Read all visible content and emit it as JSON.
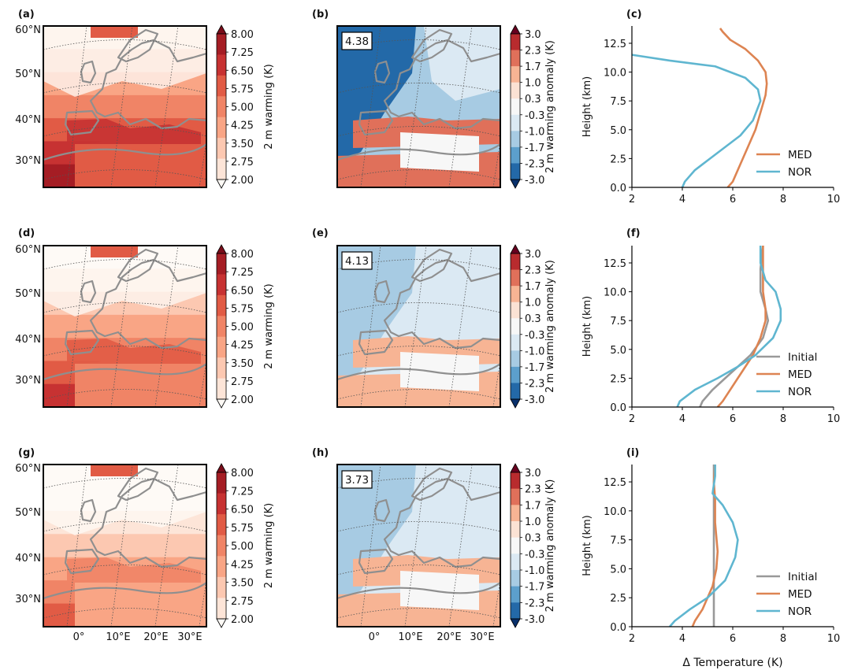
{
  "colors": {
    "warming_levels": [
      "#fefaf6",
      "#fde5d8",
      "#fcc8b1",
      "#f9a585",
      "#f08466",
      "#e15b45",
      "#c73232",
      "#a51d24",
      "#7a0d1a"
    ],
    "anomaly_levels": [
      "#08306b",
      "#2369a8",
      "#5c9fcc",
      "#a7cbe3",
      "#dbe9f3",
      "#f7f7f7",
      "#fbe2d4",
      "#f7b494",
      "#e0705a",
      "#b82b2e",
      "#67001f"
    ],
    "MED": "#dd8452",
    "NOR": "#5fb6d0",
    "Initial": "#999999",
    "coast": "#8f8f8f",
    "ocean_frame": "#000000"
  },
  "map_axes": {
    "lat_labels": [
      "60°N",
      "50°N",
      "40°N",
      "30°N"
    ],
    "lon_labels": [
      "0°",
      "10°E",
      "20°E",
      "30°E"
    ]
  },
  "colorbars": {
    "warming": {
      "label": "2 m warming (K)",
      "ticks": [
        "8.00",
        "7.25",
        "6.50",
        "5.75",
        "5.00",
        "4.25",
        "3.50",
        "2.75",
        "2.00"
      ]
    },
    "anomaly": {
      "label": "2 m warming anomaly (K)",
      "ticks": [
        "3.0",
        "2.3",
        "1.7",
        "1.0",
        "0.3",
        "-0.3",
        "-1.0",
        "-1.7",
        "-2.3",
        "-3.0"
      ]
    }
  },
  "panel_labels": [
    "(a)",
    "(b)",
    "(c)",
    "(d)",
    "(e)",
    "(f)",
    "(g)",
    "(h)",
    "(i)"
  ],
  "anomaly_boxes": [
    "4.38",
    "4.13",
    "3.73"
  ],
  "chart_data": [
    {
      "panel": "(c)",
      "type": "line",
      "xlabel": "",
      "ylabel": "Height (km)",
      "xlim": [
        2,
        10
      ],
      "ylim": [
        0,
        14
      ],
      "xticks": [
        "2",
        "4",
        "6",
        "8",
        "10"
      ],
      "yticks": [
        "0.0",
        "2.5",
        "5.0",
        "7.5",
        "10.0",
        "12.5"
      ],
      "legend": "lower-right",
      "series": [
        {
          "name": "MED",
          "color": "#dd8452",
          "x": [
            5.8,
            6.0,
            6.2,
            6.4,
            6.6,
            6.9,
            7.1,
            7.3,
            7.35,
            7.3,
            7.0,
            6.5,
            5.9,
            5.6,
            5.5
          ],
          "y": [
            0,
            0.5,
            1.5,
            2.5,
            3.5,
            5.0,
            6.5,
            8.0,
            9.0,
            10.0,
            11.0,
            12.0,
            12.8,
            13.5,
            13.8
          ]
        },
        {
          "name": "NOR",
          "color": "#5fb6d0",
          "x": [
            4.0,
            4.1,
            4.5,
            5.1,
            5.7,
            6.3,
            6.8,
            7.1,
            7.0,
            6.5,
            5.3,
            3.5,
            2.0
          ],
          "y": [
            0,
            0.5,
            1.5,
            2.5,
            3.5,
            4.5,
            5.8,
            7.5,
            8.5,
            9.5,
            10.5,
            11.0,
            11.5
          ]
        }
      ]
    },
    {
      "panel": "(f)",
      "type": "line",
      "xlabel": "",
      "ylabel": "Height (km)",
      "xlim": [
        2,
        10
      ],
      "ylim": [
        0,
        14
      ],
      "xticks": [
        "2",
        "4",
        "6",
        "8",
        "10"
      ],
      "yticks": [
        "0.0",
        "2.5",
        "5.0",
        "7.5",
        "10.0",
        "12.5"
      ],
      "legend": "lower-right",
      "series": [
        {
          "name": "Initial",
          "color": "#999999",
          "x": [
            4.7,
            4.8,
            5.2,
            5.7,
            6.2,
            6.7,
            7.2,
            7.4,
            7.3,
            7.1,
            7.1,
            7.2
          ],
          "y": [
            0,
            0.5,
            1.5,
            2.5,
            3.5,
            4.5,
            6.0,
            7.5,
            8.5,
            10.0,
            12.0,
            14.0
          ]
        },
        {
          "name": "MED",
          "color": "#dd8452",
          "x": [
            5.4,
            5.6,
            5.9,
            6.2,
            6.5,
            6.8,
            7.1,
            7.3,
            7.3,
            7.2,
            7.2,
            7.2
          ],
          "y": [
            0,
            0.5,
            1.5,
            2.5,
            3.5,
            4.5,
            6.0,
            7.5,
            8.5,
            10.0,
            12.0,
            14.0
          ]
        },
        {
          "name": "NOR",
          "color": "#5fb6d0",
          "x": [
            3.8,
            3.9,
            4.5,
            5.4,
            6.2,
            6.9,
            7.6,
            7.9,
            7.9,
            7.7,
            7.3,
            7.1,
            7.1
          ],
          "y": [
            0,
            0.5,
            1.5,
            2.5,
            3.5,
            4.5,
            6.0,
            7.5,
            8.5,
            10.0,
            11.0,
            12.5,
            14.0
          ]
        }
      ]
    },
    {
      "panel": "(i)",
      "type": "line",
      "xlabel": "Δ Temperature (K)",
      "ylabel": "Height (km)",
      "xlim": [
        2,
        10
      ],
      "ylim": [
        0,
        14
      ],
      "xticks": [
        "2",
        "4",
        "6",
        "8",
        "10"
      ],
      "yticks": [
        "0.0",
        "2.5",
        "5.0",
        "7.5",
        "10.0",
        "12.5"
      ],
      "legend": "lower-right",
      "series": [
        {
          "name": "Initial",
          "color": "#999999",
          "x": [
            5.25,
            5.25,
            5.25,
            5.25
          ],
          "y": [
            0,
            5.0,
            10.0,
            14.0
          ]
        },
        {
          "name": "MED",
          "color": "#dd8452",
          "x": [
            4.4,
            4.5,
            4.8,
            5.0,
            5.2,
            5.35,
            5.4,
            5.3,
            5.3,
            5.25,
            5.3
          ],
          "y": [
            0,
            0.5,
            1.5,
            2.5,
            3.5,
            5.0,
            6.5,
            9.0,
            11.0,
            12.5,
            14.0
          ]
        },
        {
          "name": "NOR",
          "color": "#5fb6d0",
          "x": [
            3.5,
            3.7,
            4.3,
            5.0,
            5.7,
            6.1,
            6.2,
            6.0,
            5.6,
            5.2,
            5.3,
            5.3
          ],
          "y": [
            0,
            0.5,
            1.5,
            2.5,
            4.0,
            6.0,
            7.5,
            9.0,
            10.5,
            11.5,
            13.0,
            14.0
          ]
        }
      ]
    }
  ]
}
